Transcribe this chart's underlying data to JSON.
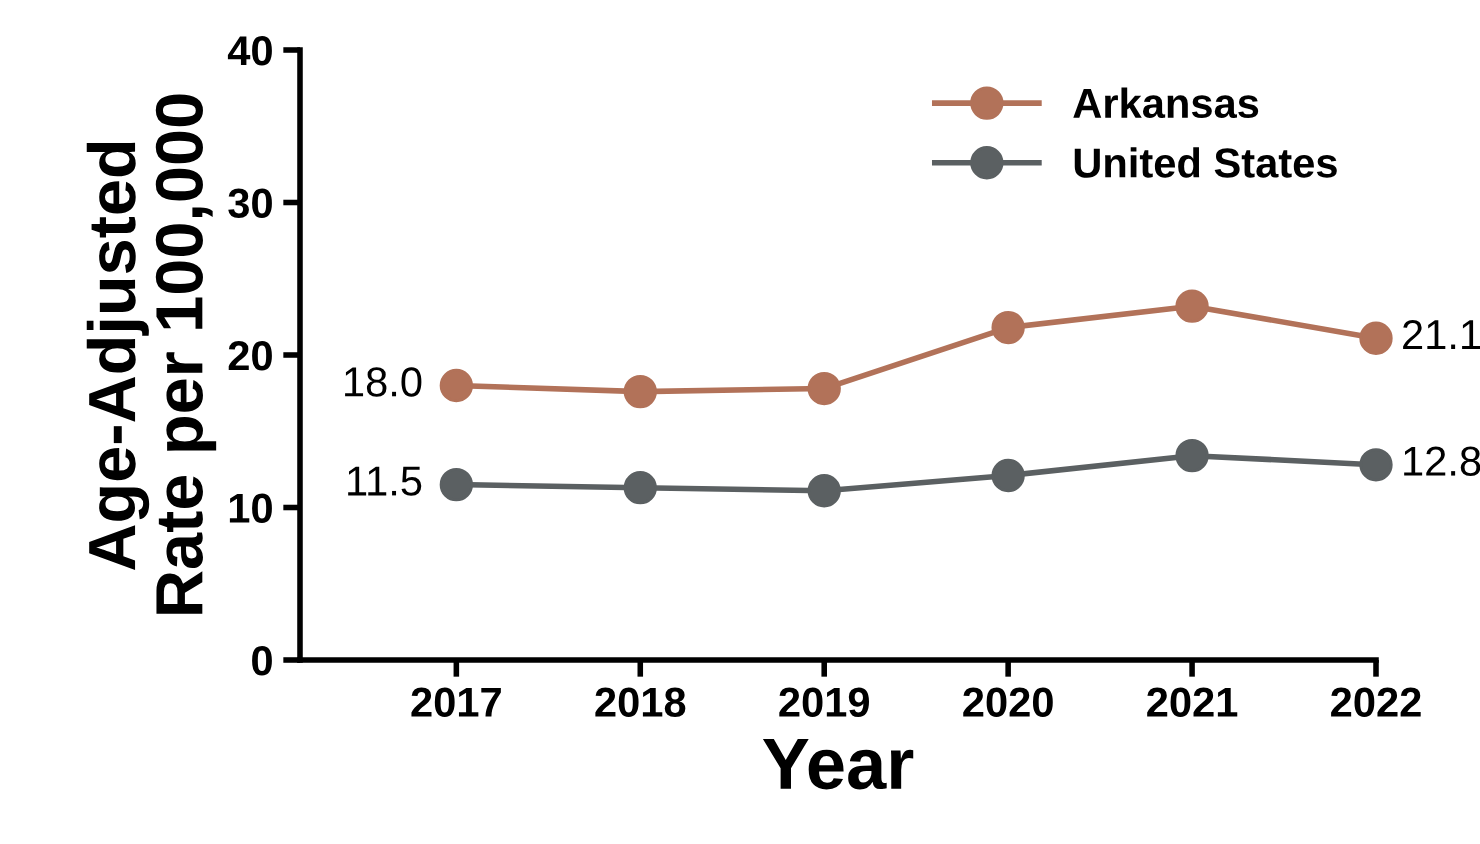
{
  "chart_data": {
    "type": "line",
    "xlabel": "Year",
    "ylabel": "Age-Adjusted\nRate per 100,000",
    "x": [
      2017,
      2018,
      2019,
      2020,
      2021,
      2022
    ],
    "series": [
      {
        "name": "Arkansas",
        "color": "#b27259",
        "values": [
          18.0,
          17.6,
          17.8,
          21.8,
          23.2,
          21.1
        ],
        "value_labels": [
          "18.0",
          null,
          null,
          null,
          null,
          "21.1"
        ]
      },
      {
        "name": "United States",
        "color": "#5b6062",
        "values": [
          11.5,
          11.3,
          11.1,
          12.1,
          13.4,
          12.8
        ],
        "value_labels": [
          "11.5",
          null,
          null,
          null,
          null,
          "12.8"
        ]
      }
    ],
    "xlim": [
      2016.15,
      2022
    ],
    "xticks": [
      2017,
      2018,
      2019,
      2020,
      2021,
      2022
    ],
    "ylim": [
      0,
      40
    ],
    "yticks": [
      0,
      10,
      20,
      30,
      40
    ],
    "grid": false,
    "legend": "top right",
    "marker": "circle",
    "line_style": "solid"
  }
}
